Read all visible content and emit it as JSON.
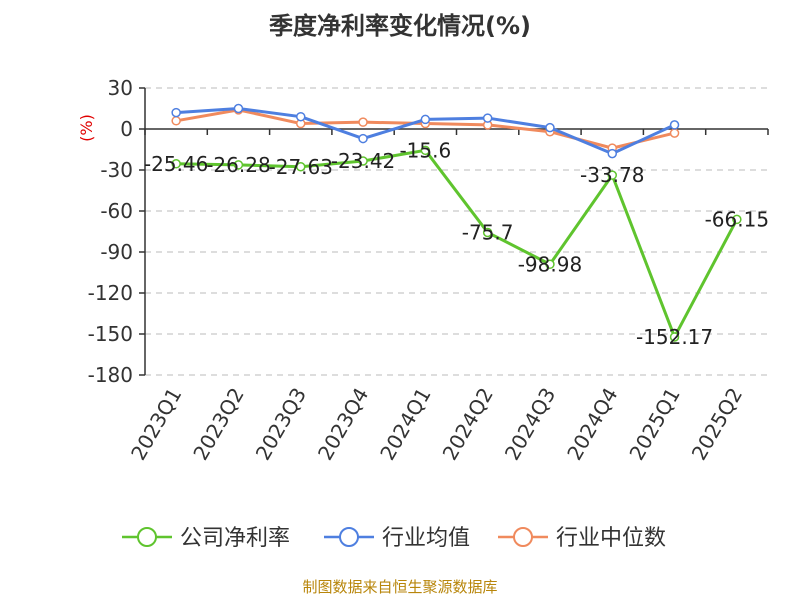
{
  "title": "季度净利率变化情况(%)",
  "unit": "(%)",
  "source": "制图数据来自恒生聚源数据库",
  "colors": {
    "company": "#5fc42e",
    "industry_avg": "#4e7fe0",
    "industry_median": "#f08a5d"
  },
  "chart_data": {
    "type": "line",
    "title": "季度净利率变化情况(%)",
    "ylabel": "(%)",
    "xlabel": "",
    "ylim": [
      -180,
      30
    ],
    "yticks": [
      30,
      0,
      -30,
      -60,
      -90,
      -120,
      -150,
      -180
    ],
    "categories": [
      "2023Q1",
      "2023Q2",
      "2023Q3",
      "2023Q4",
      "2024Q1",
      "2024Q2",
      "2024Q3",
      "2024Q4",
      "2025Q1",
      "2025Q2"
    ],
    "grid": true,
    "legend_position": "bottom",
    "series": [
      {
        "name": "公司净利率",
        "key": "company",
        "values": [
          -25.46,
          -26.28,
          -27.63,
          -23.42,
          -15.6,
          -75.7,
          -98.98,
          -33.78,
          -152.17,
          -66.15
        ],
        "labels": [
          "-25.46",
          "-26.28",
          "-27.63",
          "-23.42",
          "-15.6",
          "-75.7",
          "-98.98",
          "-33.78",
          "-152.17",
          "-66.15"
        ]
      },
      {
        "name": "行业均值",
        "key": "industry_avg",
        "values": [
          12,
          15,
          9,
          -7,
          7,
          8,
          1,
          -18,
          3,
          null
        ]
      },
      {
        "name": "行业中位数",
        "key": "industry_median",
        "values": [
          6,
          14,
          4,
          5,
          4,
          3,
          -2,
          -14,
          -3,
          null
        ]
      }
    ]
  }
}
